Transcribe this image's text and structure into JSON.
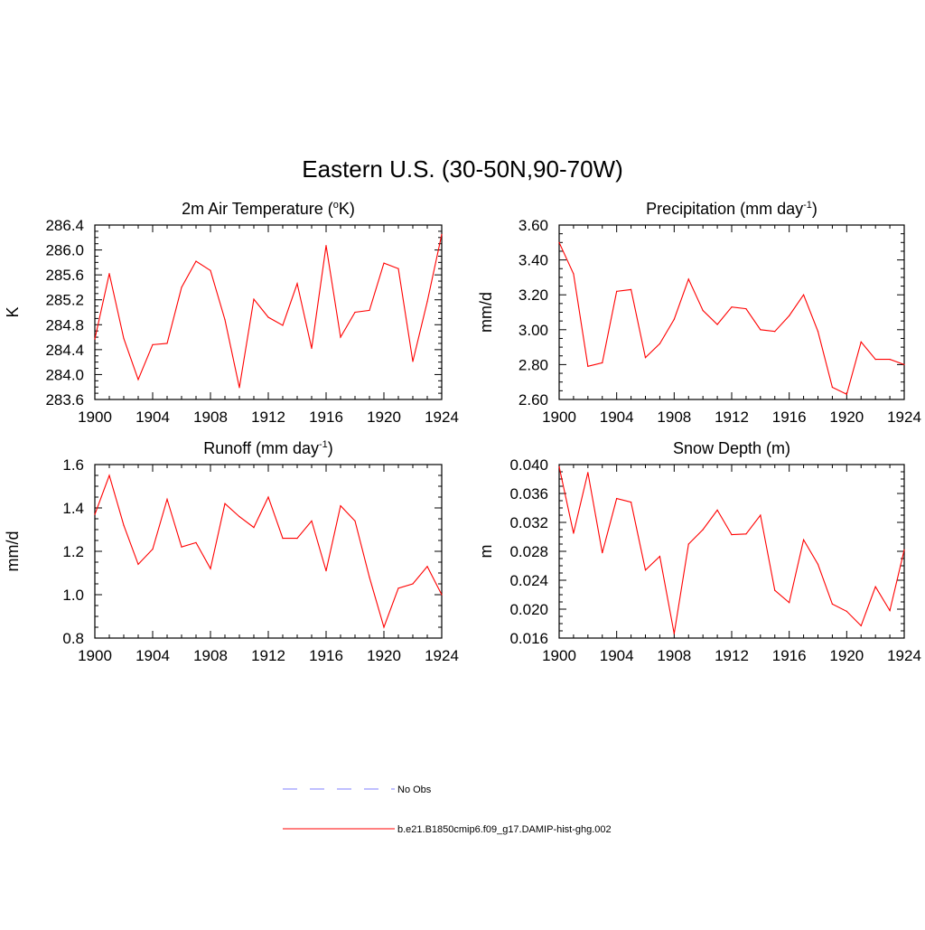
{
  "figure_title": "Eastern U.S. (30-50N,90-70W)",
  "legend": {
    "entries": [
      {
        "label": "No Obs",
        "color": "#9999ff",
        "style": "dashed"
      },
      {
        "label": "b.e21.B1850cmip6.f09_g17.DAMIP-hist-ghg.002",
        "color": "#ff0000",
        "style": "solid"
      }
    ]
  },
  "chart_data": [
    {
      "type": "line",
      "title": "2m Air Temperature (",
      "title_sup": "o",
      "title_tail": "K)",
      "ylabel": "K",
      "x": [
        1900,
        1901,
        1902,
        1903,
        1904,
        1905,
        1906,
        1907,
        1908,
        1909,
        1910,
        1911,
        1912,
        1913,
        1914,
        1915,
        1916,
        1917,
        1918,
        1919,
        1920,
        1921,
        1922,
        1923,
        1924
      ],
      "xlim": [
        1900,
        1924
      ],
      "xticks": [
        "1900",
        "1904",
        "1908",
        "1912",
        "1916",
        "1920",
        "1924"
      ],
      "ylim": [
        283.6,
        286.4
      ],
      "yticks": [
        "283.6",
        "284.0",
        "284.4",
        "284.8",
        "285.2",
        "285.6",
        "286.0",
        "286.4"
      ],
      "series": [
        {
          "color": "#ff0000",
          "values": [
            284.57,
            285.62,
            284.58,
            283.92,
            284.48,
            284.5,
            285.4,
            285.82,
            285.67,
            284.88,
            283.79,
            285.21,
            284.92,
            284.79,
            285.46,
            284.42,
            286.07,
            284.6,
            285.0,
            285.03,
            285.79,
            285.7,
            284.21,
            285.17,
            286.25
          ]
        }
      ]
    },
    {
      "type": "line",
      "title": "Precipitation (mm day",
      "title_sup": "-1",
      "title_tail": ")",
      "ylabel": "mm/d",
      "x": [
        1900,
        1901,
        1902,
        1903,
        1904,
        1905,
        1906,
        1907,
        1908,
        1909,
        1910,
        1911,
        1912,
        1913,
        1914,
        1915,
        1916,
        1917,
        1918,
        1919,
        1920,
        1921,
        1922,
        1923,
        1924
      ],
      "xlim": [
        1900,
        1924
      ],
      "xticks": [
        "1900",
        "1904",
        "1908",
        "1912",
        "1916",
        "1920",
        "1924"
      ],
      "ylim": [
        2.6,
        3.6
      ],
      "yticks": [
        "2.60",
        "2.80",
        "3.00",
        "3.20",
        "3.40",
        "3.60"
      ],
      "series": [
        {
          "color": "#ff0000",
          "values": [
            3.5,
            3.32,
            2.79,
            2.81,
            3.22,
            3.23,
            2.84,
            2.92,
            3.06,
            3.29,
            3.11,
            3.03,
            3.13,
            3.12,
            3.0,
            2.99,
            3.08,
            3.2,
            2.99,
            2.67,
            2.63,
            2.93,
            2.83,
            2.83,
            2.8
          ]
        }
      ]
    },
    {
      "type": "line",
      "title": "Runoff (mm day",
      "title_sup": "-1",
      "title_tail": ")",
      "ylabel": "mm/d",
      "x": [
        1900,
        1901,
        1902,
        1903,
        1904,
        1905,
        1906,
        1907,
        1908,
        1909,
        1910,
        1911,
        1912,
        1913,
        1914,
        1915,
        1916,
        1917,
        1918,
        1919,
        1920,
        1921,
        1922,
        1923,
        1924
      ],
      "xlim": [
        1900,
        1924
      ],
      "xticks": [
        "1900",
        "1904",
        "1908",
        "1912",
        "1916",
        "1920",
        "1924"
      ],
      "ylim": [
        0.8,
        1.6
      ],
      "yticks": [
        "0.8",
        "1.0",
        "1.2",
        "1.4",
        "1.6"
      ],
      "series": [
        {
          "color": "#ff0000",
          "values": [
            1.37,
            1.55,
            1.32,
            1.14,
            1.21,
            1.44,
            1.22,
            1.24,
            1.12,
            1.42,
            1.36,
            1.31,
            1.45,
            1.26,
            1.26,
            1.34,
            1.11,
            1.41,
            1.34,
            1.08,
            0.85,
            1.03,
            1.05,
            1.13,
            1.0
          ]
        }
      ]
    },
    {
      "type": "line",
      "title": "Snow Depth (m)",
      "title_sup": "",
      "title_tail": "",
      "ylabel": "m",
      "x": [
        1900,
        1901,
        1902,
        1903,
        1904,
        1905,
        1906,
        1907,
        1908,
        1909,
        1910,
        1911,
        1912,
        1913,
        1914,
        1915,
        1916,
        1917,
        1918,
        1919,
        1920,
        1921,
        1922,
        1923,
        1924
      ],
      "xlim": [
        1900,
        1924
      ],
      "xticks": [
        "1900",
        "1904",
        "1908",
        "1912",
        "1916",
        "1920",
        "1924"
      ],
      "ylim": [
        0.016,
        0.04
      ],
      "yticks": [
        "0.016",
        "0.020",
        "0.024",
        "0.028",
        "0.032",
        "0.036",
        "0.040"
      ],
      "series": [
        {
          "color": "#ff0000",
          "values": [
            0.0397,
            0.0305,
            0.0389,
            0.0278,
            0.0353,
            0.0348,
            0.0254,
            0.0273,
            0.0166,
            0.029,
            0.031,
            0.0337,
            0.0303,
            0.0304,
            0.033,
            0.0226,
            0.0209,
            0.0296,
            0.0262,
            0.0207,
            0.0197,
            0.0177,
            0.0231,
            0.0198,
            0.0282
          ]
        }
      ]
    }
  ]
}
